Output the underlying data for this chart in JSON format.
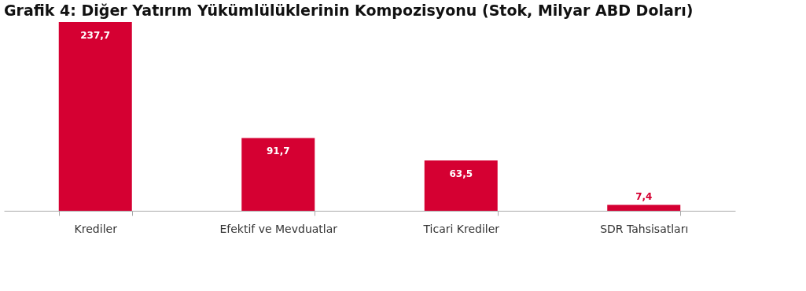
{
  "chart_data": {
    "type": "bar",
    "title": "Grafik 4: Diğer Yatırım Yükümlülüklerinin Kompozisyonu (Stok, Milyar ABD Doları)",
    "categories": [
      "Krediler",
      "Efektif ve Mevduatlar",
      "Ticari Krediler",
      "SDR Tahsisatları"
    ],
    "values": [
      237.7,
      91.7,
      63.5,
      7.4
    ],
    "color": "#d50032",
    "value_labels": [
      "237,7",
      "91,7",
      "63,5",
      "7,4"
    ],
    "tick_labels": "x",
    "grid": false
  }
}
